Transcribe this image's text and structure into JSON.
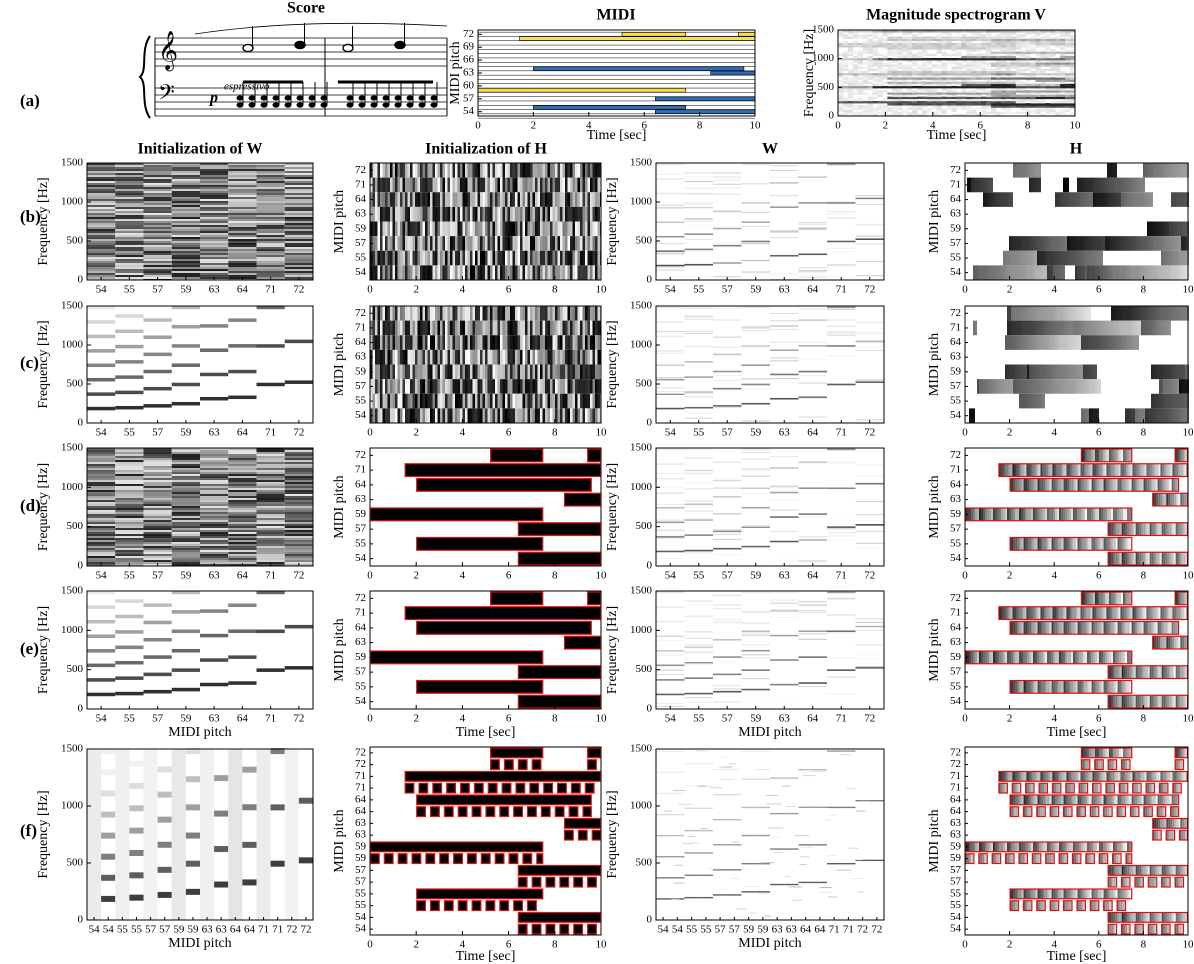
{
  "row_labels": [
    "(a)",
    "(b)",
    "(c)",
    "(d)",
    "(e)",
    "(f)"
  ],
  "score": {
    "title": "Score",
    "dynamic": "p",
    "expression": "espressivo"
  },
  "midi": {
    "title": "MIDI",
    "ylabel": "MIDI pitch",
    "xlabel": "Time [sec]",
    "xlim": [
      0,
      10
    ],
    "xticks": [
      0,
      2,
      4,
      6,
      8,
      10
    ],
    "ylim": [
      53,
      73
    ],
    "yticks": [
      54,
      57,
      60,
      63,
      66,
      69,
      72
    ],
    "notes": [
      [
        72,
        5.2,
        7.5
      ],
      [
        72,
        9.4,
        10
      ],
      [
        71,
        1.5,
        10
      ],
      [
        64,
        2,
        9.6
      ],
      [
        63,
        8.4,
        10
      ],
      [
        59,
        0,
        7.5
      ],
      [
        57,
        6.4,
        10
      ],
      [
        55,
        2,
        7.5
      ],
      [
        54,
        6.4,
        10
      ]
    ]
  },
  "spectrogram": {
    "title": "Magnitude spectrogram V",
    "ylabel": "Frequency [Hz]",
    "xlabel": "Time [sec]",
    "xlim": [
      0,
      10
    ],
    "xticks": [
      0,
      2,
      4,
      6,
      8,
      10
    ],
    "ylim": [
      0,
      1500
    ],
    "yticks": [
      0,
      500,
      1000,
      1500
    ]
  },
  "column_titles": [
    "Initialization of W",
    "Initialization of H",
    "W",
    "H"
  ],
  "pitches": [
    54,
    55,
    57,
    59,
    63,
    64,
    71,
    72
  ],
  "pitches_doubled": [
    54,
    54,
    55,
    55,
    57,
    57,
    59,
    59,
    63,
    63,
    64,
    64,
    71,
    71,
    72,
    72
  ],
  "pitch_label": "MIDI pitch",
  "freq_label": "Frequency [Hz]",
  "time_label": "Time [sec]",
  "freq_lim": [
    0,
    1500
  ],
  "freq_ticks": [
    0,
    500,
    1000,
    1500
  ],
  "time_lim": [
    0,
    10
  ],
  "time_ticks": [
    0,
    2,
    4,
    6,
    8,
    10
  ]
}
